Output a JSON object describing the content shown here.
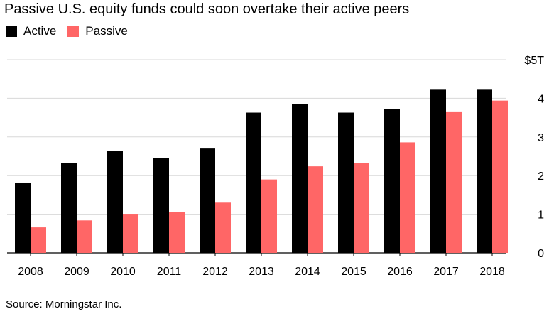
{
  "chart_data": {
    "type": "bar",
    "title": "Passive U.S. equity funds could soon overtake their active peers",
    "categories": [
      "2008",
      "2009",
      "2010",
      "2011",
      "2012",
      "2013",
      "2014",
      "2015",
      "2016",
      "2017",
      "2018"
    ],
    "series": [
      {
        "name": "Active",
        "color": "#000000",
        "values": [
          1.82,
          2.33,
          2.63,
          2.46,
          2.7,
          3.63,
          3.85,
          3.63,
          3.72,
          4.24,
          4.24
        ]
      },
      {
        "name": "Passive",
        "color": "#ff6666",
        "values": [
          0.66,
          0.84,
          1.01,
          1.05,
          1.3,
          1.9,
          2.24,
          2.33,
          2.86,
          3.66,
          3.94
        ]
      }
    ],
    "yticks": [
      {
        "value": 0,
        "label": "0"
      },
      {
        "value": 1,
        "label": "1"
      },
      {
        "value": 2,
        "label": "2"
      },
      {
        "value": 3,
        "label": "3"
      },
      {
        "value": 4,
        "label": "4"
      },
      {
        "value": 5,
        "label": "$5T"
      }
    ],
    "ylim": [
      0,
      5
    ],
    "xlabel": "",
    "ylabel": "",
    "grid": true,
    "legend_position": "top-left",
    "source": "Source: Morningstar Inc."
  }
}
